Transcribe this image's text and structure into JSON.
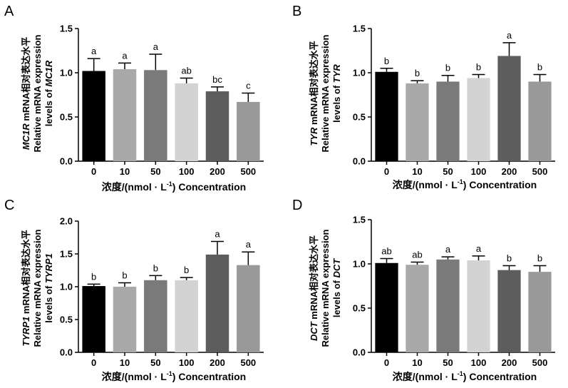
{
  "chart_data": [
    {
      "type": "bar",
      "panel": "A",
      "categories": [
        "0",
        "10",
        "50",
        "100",
        "200",
        "500"
      ],
      "values": [
        1.02,
        1.04,
        1.03,
        0.88,
        0.79,
        0.67
      ],
      "errors": [
        0.14,
        0.07,
        0.18,
        0.06,
        0.05,
        0.1
      ],
      "significance": [
        "a",
        "a",
        "a",
        "ab",
        "bc",
        "c"
      ],
      "colors": [
        "#000000",
        "#a9a9a9",
        "#7a7a7a",
        "#d3d3d3",
        "#5d5d5d",
        "#999999"
      ],
      "ylim": [
        0,
        1.5
      ],
      "yticks": [
        "0.0",
        "0.5",
        "1.0",
        "1.5"
      ],
      "ylabel_line1_gene": "MC1R",
      "ylabel_line1_rest": " mRNA相对表达水平",
      "ylabel_line2": "Relative mRNA expression",
      "ylabel_line3_prefix": "levels of ",
      "ylabel_line3_gene": "MC1R",
      "xlabel_prefix": "浓度/(nmol · L",
      "xlabel_sup": "-1",
      "xlabel_suffix": ") Concentration"
    },
    {
      "type": "bar",
      "panel": "B",
      "categories": [
        "0",
        "10",
        "50",
        "100",
        "200",
        "500"
      ],
      "values": [
        1.01,
        0.88,
        0.9,
        0.94,
        1.19,
        0.9
      ],
      "errors": [
        0.04,
        0.03,
        0.07,
        0.04,
        0.15,
        0.08
      ],
      "significance": [
        "b",
        "b",
        "b",
        "b",
        "a",
        "b"
      ],
      "colors": [
        "#000000",
        "#a9a9a9",
        "#7a7a7a",
        "#d3d3d3",
        "#5d5d5d",
        "#999999"
      ],
      "ylim": [
        0,
        1.5
      ],
      "yticks": [
        "0.0",
        "0.5",
        "1.0",
        "1.5"
      ],
      "ylabel_line1_gene": "TYR",
      "ylabel_line1_rest": " mRNA相对表达水平",
      "ylabel_line2": "Relative mRNA expression",
      "ylabel_line3_prefix": "levels of ",
      "ylabel_line3_gene": "TYR",
      "xlabel_prefix": "浓度/(nmol · L",
      "xlabel_sup": "-1",
      "xlabel_suffix": ") Concentration"
    },
    {
      "type": "bar",
      "panel": "C",
      "categories": [
        "0",
        "10",
        "50",
        "100",
        "200",
        "500"
      ],
      "values": [
        1.01,
        1.0,
        1.1,
        1.1,
        1.49,
        1.33
      ],
      "errors": [
        0.03,
        0.06,
        0.07,
        0.04,
        0.2,
        0.2
      ],
      "significance": [
        "b",
        "b",
        "b",
        "b",
        "a",
        "a"
      ],
      "colors": [
        "#000000",
        "#a9a9a9",
        "#7a7a7a",
        "#d3d3d3",
        "#5d5d5d",
        "#999999"
      ],
      "ylim": [
        0,
        2.0
      ],
      "yticks": [
        "0.0",
        "0.5",
        "1.0",
        "1.5",
        "2.0"
      ],
      "ylabel_line1_gene": "TYRP1",
      "ylabel_line1_rest": " mRNA相对表达水平",
      "ylabel_line2": "Relative mRNA expression",
      "ylabel_line3_prefix": "levels of ",
      "ylabel_line3_gene": "TYRP1",
      "xlabel_prefix": "浓度/(nmol · L",
      "xlabel_sup": "-1",
      "xlabel_suffix": ") Concentration"
    },
    {
      "type": "bar",
      "panel": "D",
      "categories": [
        "0",
        "10",
        "50",
        "100",
        "200",
        "500"
      ],
      "values": [
        1.01,
        0.99,
        1.05,
        1.04,
        0.93,
        0.91
      ],
      "errors": [
        0.05,
        0.03,
        0.03,
        0.05,
        0.05,
        0.07
      ],
      "significance": [
        "ab",
        "ab",
        "a",
        "a",
        "b",
        "b"
      ],
      "colors": [
        "#000000",
        "#a9a9a9",
        "#7a7a7a",
        "#d3d3d3",
        "#5d5d5d",
        "#999999"
      ],
      "ylim": [
        0,
        1.5
      ],
      "yticks": [
        "0.0",
        "0.5",
        "1.0",
        "1.5"
      ],
      "ylabel_line1_gene": "DCT",
      "ylabel_line1_rest": " mRNA相对表达水平",
      "ylabel_line2": "Relative mRNA expression",
      "ylabel_line3_prefix": "levels of ",
      "ylabel_line3_gene": "DCT",
      "xlabel_prefix": "浓度/(nmol · L",
      "xlabel_sup": "-1",
      "xlabel_suffix": ") Concentration"
    }
  ]
}
